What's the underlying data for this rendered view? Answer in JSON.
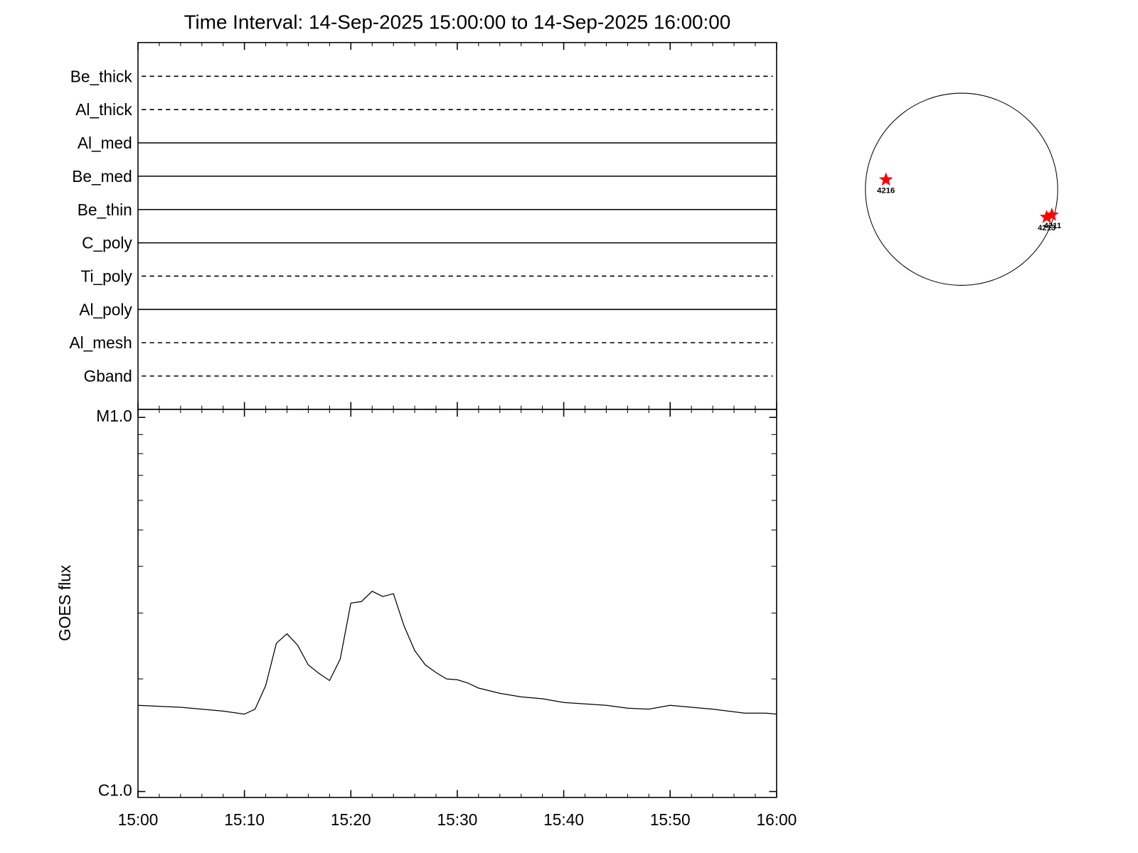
{
  "chart_data": [
    {
      "type": "timeline",
      "title": "Time Interval: 14-Sep-2025 15:00:00 to 14-Sep-2025 16:00:00",
      "categories": [
        "Be_thick",
        "Al_thick",
        "Al_med",
        "Be_med",
        "Be_thin",
        "C_poly",
        "Ti_poly",
        "Al_poly",
        "Al_mesh",
        "Gband"
      ],
      "line_styles": [
        "dashed",
        "dashed",
        "solid",
        "solid",
        "solid",
        "solid",
        "dashed",
        "solid",
        "dashed",
        "dashed"
      ],
      "color": "#000000"
    },
    {
      "type": "line",
      "ylabel": "GOES flux",
      "x": [
        "15:00",
        "15:04",
        "15:08",
        "15:10",
        "15:11",
        "15:12",
        "15:13",
        "15:14",
        "15:15",
        "15:16",
        "15:17",
        "15:18",
        "15:19",
        "15:20",
        "15:21",
        "15:22",
        "15:23",
        "15:24",
        "15:25",
        "15:26",
        "15:27",
        "15:28",
        "15:29",
        "15:30",
        "15:31",
        "15:32",
        "15:34",
        "15:36",
        "15:38",
        "15:40",
        "15:44",
        "15:46",
        "15:48",
        "15:50",
        "15:52",
        "15:54",
        "15:57",
        "15:59",
        "16:00"
      ],
      "values": [
        1.7e-06,
        1.68e-06,
        1.64e-06,
        1.61e-06,
        1.66e-06,
        1.92e-06,
        2.49e-06,
        2.64e-06,
        2.46e-06,
        2.18e-06,
        2.07e-06,
        1.98e-06,
        2.26e-06,
        3.19e-06,
        3.22e-06,
        3.43e-06,
        3.32e-06,
        3.38e-06,
        2.77e-06,
        2.38e-06,
        2.18e-06,
        2.08e-06,
        2e-06,
        1.99e-06,
        1.95e-06,
        1.89e-06,
        1.83e-06,
        1.79e-06,
        1.77e-06,
        1.73e-06,
        1.7e-06,
        1.67e-06,
        1.66e-06,
        1.7e-06,
        1.68e-06,
        1.66e-06,
        1.62e-06,
        1.62e-06,
        1.61e-06
      ],
      "color": "#000000",
      "xlim": [
        "15:00",
        "16:00"
      ],
      "xticks": [
        "15:00",
        "15:10",
        "15:20",
        "15:30",
        "15:40",
        "15:50",
        "16:00"
      ],
      "minor_ticks_per_major": 5,
      "ylim": [
        1e-06,
        1e-05
      ],
      "yticks": [
        {
          "value": 1e-06,
          "label": "C1.0"
        },
        {
          "value": 1e-05,
          "label": "M1.0"
        }
      ],
      "log_scale": true,
      "minor_ticks": true
    },
    {
      "type": "disk",
      "labels": [
        "4216",
        "4213",
        "4211"
      ],
      "color": "#ff0000"
    }
  ]
}
